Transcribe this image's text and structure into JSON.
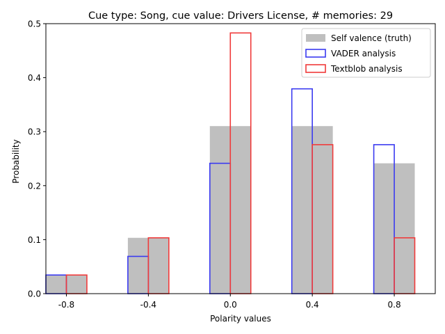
{
  "chart_data": {
    "type": "bar",
    "title": "Cue type: Song, cue value: Drivers License, # memories: 29",
    "xlabel": "Polarity values",
    "ylabel": "Probability",
    "categories": [
      "-0.8",
      "-0.4",
      "0.0",
      "0.4",
      "0.8"
    ],
    "x": [
      -0.8,
      -0.4,
      0.0,
      0.4,
      0.8
    ],
    "xlim": [
      -0.9,
      1.0
    ],
    "ylim": [
      0,
      0.5
    ],
    "yticks": [
      0.0,
      0.1,
      0.2,
      0.3,
      0.4,
      0.5
    ],
    "ytick_labels": [
      "0.0",
      "0.1",
      "0.2",
      "0.3",
      "0.4",
      "0.5"
    ],
    "grid": false,
    "legend_position": "top-right",
    "series": [
      {
        "name": "Self valence (truth)",
        "style": "filled",
        "color": "#bfbfbf",
        "values": [
          0.0345,
          0.1034,
          0.3103,
          0.3103,
          0.2414
        ]
      },
      {
        "name": "VADER analysis",
        "style": "outline",
        "color": "#3a3af0",
        "values": [
          0.0345,
          0.069,
          0.2414,
          0.3793,
          0.2759
        ]
      },
      {
        "name": "Textblob analysis",
        "style": "outline",
        "color": "#f03a3a",
        "values": [
          0.0345,
          0.1034,
          0.4828,
          0.2759,
          0.1034
        ]
      }
    ]
  }
}
